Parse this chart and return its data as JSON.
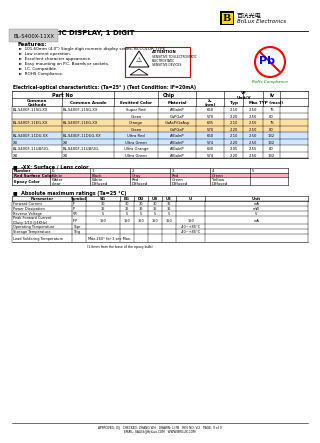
{
  "title_main": "LED NUMERIC DISPLAY, 1 DIGIT",
  "part_number": "BL-S400X-11XX",
  "company_cn": "百沆光电",
  "company_en": "BriLux Electronics",
  "features": [
    "101.60mm (4.0\") Single digit numeric display series, Bi-COLOR TYPE",
    "Low current operation.",
    "Excellent character appearance.",
    "Easy mounting on P.C. Boards or sockets.",
    "I.C. Compatible.",
    "ROHS Compliance."
  ],
  "elec_title": "Electrical-optical characteristics: (Ta=25° ) (Test Condition: IF=20mA)",
  "rows": [
    [
      "BL-S400F-11SG-XX",
      "BL-S400F-11SG-XX",
      "Super Red",
      "AlGaInP",
      "660",
      "2.10",
      "2.50",
      "75"
    ],
    [
      "",
      "",
      "Green",
      "GaPGaP",
      "570",
      "2.20",
      "2.50",
      "80"
    ],
    [
      "BL-S400F-11EG-XX",
      "BL-S400F-11EG-XX",
      "Orange",
      "GaAsP/GaAsp",
      "635",
      "2.10",
      "2.50",
      "75"
    ],
    [
      "",
      "",
      "Green",
      "GaPGaP",
      "570",
      "2.20",
      "2.50",
      "80"
    ],
    [
      "BL-S400F-11DU-XX",
      "BL-S400F-11DUG-XX",
      "Ultra Red",
      "AlGaInP",
      "660",
      "2.10",
      "2.50",
      "132"
    ],
    [
      "XX",
      "XX",
      "Ultra Green",
      "AlGaInP",
      "574",
      "2.20",
      "2.50",
      "132"
    ],
    [
      "BL-S400F-11UB/UG-",
      "BL-S400F-11UB/UG-",
      "Ultra Orange",
      "AlGaInP",
      "630",
      "2.05",
      "2.55",
      "80"
    ],
    [
      "XX",
      "XX",
      "Ultra Green",
      "AlGaInP",
      "574",
      "2.20",
      "2.50",
      "132"
    ]
  ],
  "orange_rows": [
    2,
    3
  ],
  "blue_rows": [
    4,
    5
  ],
  "lens_title": "-XX: Surface / Lens color",
  "lens_numbers": [
    "0",
    "1",
    "2",
    "3",
    "4",
    "5"
  ],
  "lens_surface": [
    "White",
    "Black",
    "Gray",
    "Red",
    "Green",
    ""
  ],
  "lens_epoxy": [
    "Water\nclear",
    "White\nDiffused",
    "Red\nDiffused",
    "Green\nDiffused",
    "Yellow\nDiffused",
    ""
  ],
  "abs_title": "Absolute maximum ratings (Ta=25 °C)",
  "abs_header": [
    "Parameter",
    "Symbol",
    "SG",
    "EG",
    "DU",
    "UB",
    "UE",
    "U",
    "Unit"
  ],
  "abs_data": [
    [
      "Forward Current",
      "IF",
      "30",
      "30",
      "30",
      "30",
      "35",
      "",
      "mA"
    ],
    [
      "Power Dissipation",
      "P",
      "36",
      "36",
      "36",
      "36",
      "36",
      "",
      "mW"
    ],
    [
      "Reverse Voltage",
      "VR",
      "5",
      "5",
      "5",
      "5",
      "5",
      "",
      "V"
    ],
    [
      "Peak Forward Current\n(Duty 1/10 @1KHz)",
      "IFP",
      "150",
      "150",
      "150",
      "150",
      "150",
      "150",
      "mA"
    ],
    [
      "Operating Temperature",
      "Topr",
      "",
      "",
      "",
      "",
      "",
      "-40~+85°C",
      ""
    ],
    [
      "Storage Temperature",
      "Tstg",
      "",
      "",
      "",
      "",
      "",
      "-40~+85°C",
      ""
    ],
    [
      "Lead Soldering Temperature",
      "",
      "Max.260° for 3 sec Max.",
      "",
      "",
      "",
      "",
      "",
      ""
    ]
  ],
  "footer_line1": "APPROVED: X/J   CHECKED: ZHANG WH   DRAWN: LI FB   REV NO: V.2   PAGE: 9 of 9",
  "footer_line2": "EMAIL: SALES@BriLux.COM   WWW.BRILUX.COM"
}
